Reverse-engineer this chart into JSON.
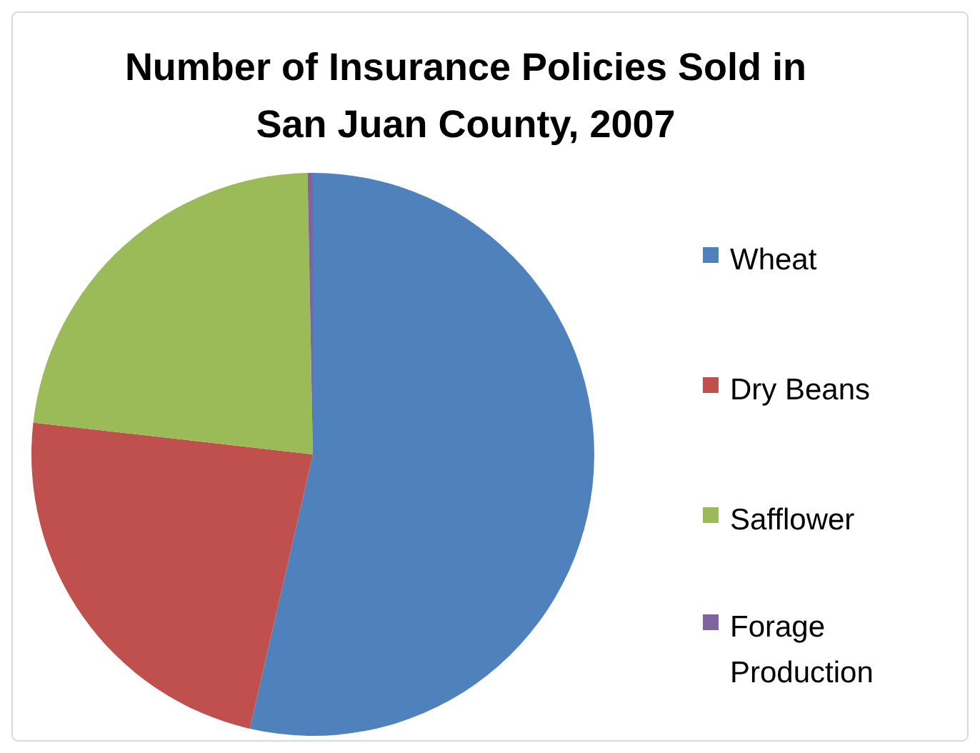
{
  "chart_data": {
    "type": "pie",
    "title": "Number of Insurance Policies Sold in San Juan County, 2007",
    "categories": [
      "Wheat",
      "Dry Beans",
      "Safflower",
      "Forage Production"
    ],
    "values": [
      53.6,
      23.2,
      22.9,
      0.3
    ],
    "colors": [
      "#4f81bd",
      "#c0504d",
      "#9bbb59",
      "#8064a2"
    ],
    "legend": "right"
  }
}
